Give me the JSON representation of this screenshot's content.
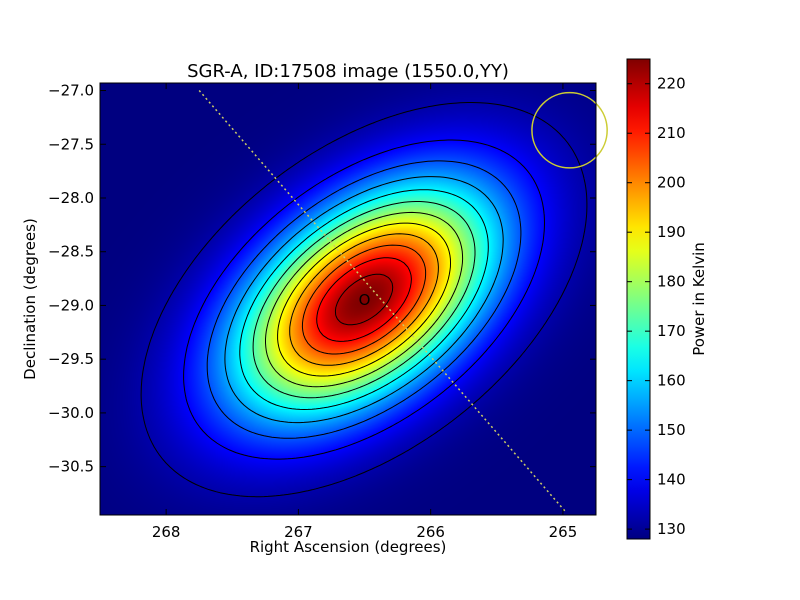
{
  "chart_data": {
    "type": "heatmap",
    "title": "SGR-A, ID:17508 image (1550.0,YY)",
    "xlabel": "Right Ascension (degrees)",
    "ylabel": "Declination (degrees)",
    "xlim": [
      268.5,
      264.75
    ],
    "ylim": [
      -30.95,
      -26.93
    ],
    "x_ticks": [
      268,
      267,
      266,
      265
    ],
    "x_tick_labels": [
      "268",
      "267",
      "266",
      "265"
    ],
    "y_ticks": [
      -27.0,
      -27.5,
      -28.0,
      -28.5,
      -29.0,
      -29.5,
      -30.0,
      -30.5
    ],
    "y_tick_labels": [
      "−27.0",
      "−27.5",
      "−28.0",
      "−28.5",
      "−29.0",
      "−29.5",
      "−30.0",
      "−30.5"
    ],
    "colorbar": {
      "label": "Power in Kelvin",
      "min": 128,
      "max": 225,
      "ticks": [
        130,
        140,
        150,
        160,
        170,
        180,
        190,
        200,
        210,
        220
      ],
      "tick_labels": [
        "130",
        "140",
        "150",
        "160",
        "170",
        "180",
        "190",
        "200",
        "210",
        "220"
      ],
      "colormap": "jet"
    },
    "field": {
      "background_k": 128,
      "peak_ra": 266.5,
      "peak_dec": -28.95,
      "peak_k": 225,
      "sigma_major_deg": 0.85,
      "sigma_minor_deg": 0.5,
      "orientation_deg": 50
    },
    "contour_levels": [
      132,
      140,
      148,
      156,
      164,
      172,
      180,
      188,
      196,
      204,
      212,
      220
    ],
    "peak_marker": {
      "label": "O",
      "ra": 266.5,
      "dec": -28.95
    },
    "track": {
      "ra_start": 267.75,
      "dec_start": -27.0,
      "ra_end": 264.98,
      "dec_end": -30.92,
      "color": "#cccc66"
    },
    "beam": {
      "ra": 264.95,
      "dec": -27.37,
      "radius_deg": 0.35,
      "color": "#cccc33"
    }
  }
}
